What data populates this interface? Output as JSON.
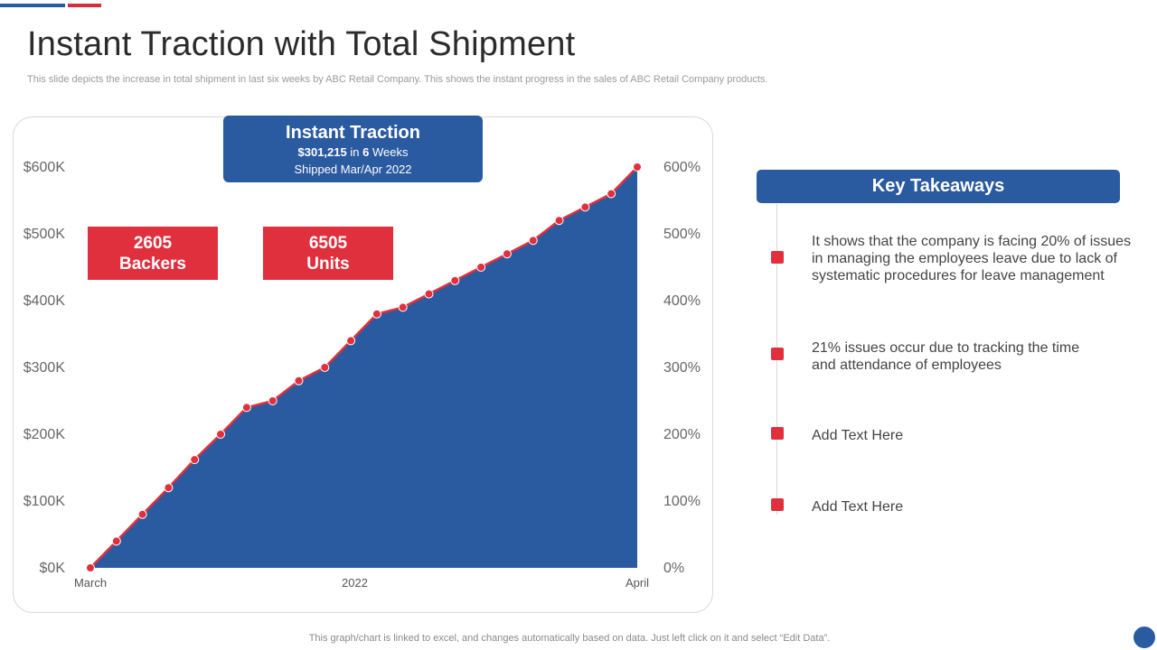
{
  "header": {
    "title": "Instant Traction with Total Shipment",
    "subtitle": "This slide depicts the increase in total shipment in last six weeks by ABC Retail Company. This shows the instant progress in the sales of ABC Retail Company products."
  },
  "traction": {
    "title": "Instant Traction",
    "amount": "$301,215",
    "in_text": "in",
    "weeks": "6",
    "weeks_label": "Weeks",
    "shipped": "Shipped Mar/Apr 2022"
  },
  "stats": [
    {
      "value": "2605",
      "label": "Backers"
    },
    {
      "value": "6505",
      "label": "Units"
    }
  ],
  "takeaways": {
    "title": "Key Takeaways",
    "items": [
      "It shows that the company is facing 20% of issues in managing the employees leave due to lack of systematic procedures for leave management",
      "21% issues occur due to tracking the time and attendance of employees",
      "Add Text Here",
      "Add Text Here"
    ]
  },
  "footer": "This graph/chart is linked to excel, and changes automatically based on data. Just left click on it and select “Edit Data”.",
  "colors": {
    "area": "#2a5aa0",
    "line": "#e0303e",
    "accent_blue": "#2a5aa0",
    "accent_red": "#e0303e"
  },
  "chart_data": {
    "type": "area",
    "title": "",
    "xlabel": "",
    "ylabel": "",
    "x_tick_labels": [
      "March",
      "2022",
      "April"
    ],
    "y_ticks_left": [
      "$0K",
      "$100K",
      "$200K",
      "$300K",
      "$400K",
      "$500K",
      "$600K"
    ],
    "y_ticks_right": [
      "0%",
      "100%",
      "200%",
      "300%",
      "400%",
      "500%",
      "600%"
    ],
    "ylim": [
      0,
      600
    ],
    "y_unit": "$K",
    "series": [
      {
        "name": "Total Shipment",
        "values": [
          0,
          40,
          80,
          120,
          162,
          200,
          240,
          250,
          280,
          300,
          340,
          380,
          390,
          410,
          430,
          450,
          470,
          490,
          520,
          540,
          560,
          600
        ]
      }
    ]
  }
}
